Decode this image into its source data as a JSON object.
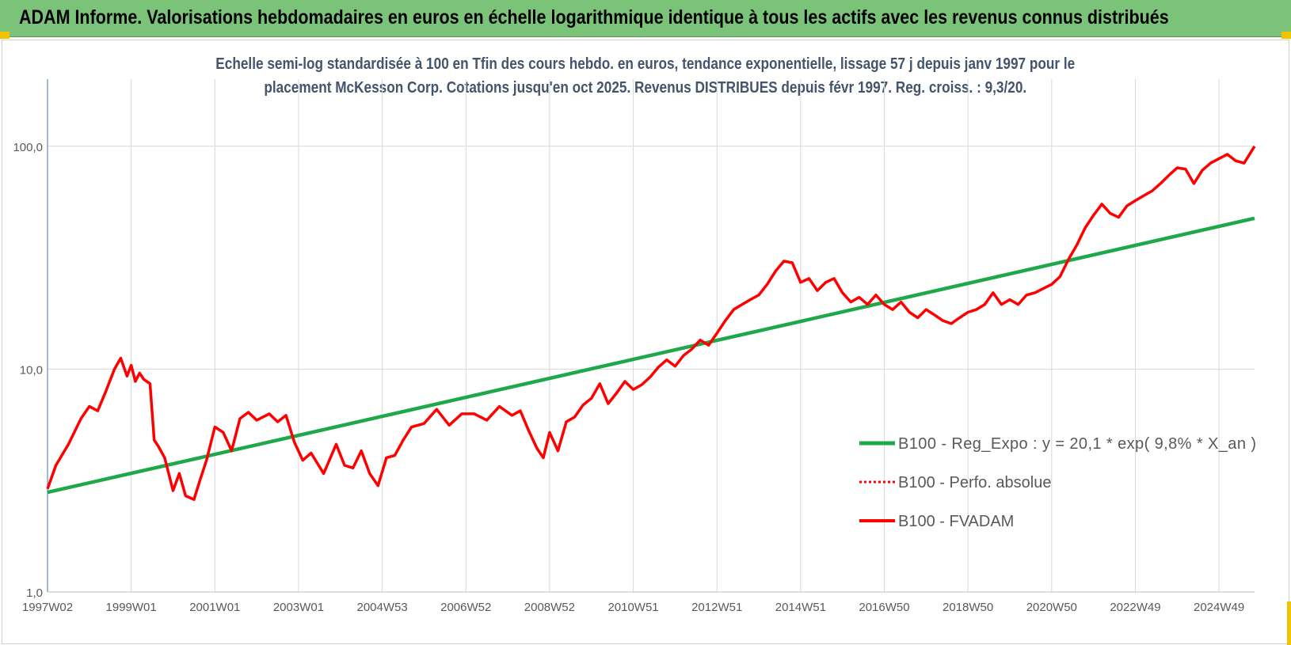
{
  "banner": {
    "title": "ADAM Informe. Valorisations hebdomadaires en euros en échelle logarithmique identique à tous les actifs avec les revenus connus distribués"
  },
  "chart_subtitle": {
    "line1": "Echelle semi-log standardisée à 100 en Tfin des cours hebdo. en euros, tendance exponentielle, lissage 57 j depuis janv 1997 pour le",
    "line2": "placement McKesson Corp. Cotations jusqu'en oct 2025.  Revenus DISTRIBUES depuis févr 1997. Reg. croiss. : 9,3/20."
  },
  "colors": {
    "banner": "#7cc37a",
    "accent_corner": "#f2c200",
    "regression": "#1fa84a",
    "fvadam": "#ff0000",
    "perfo": "#ff0000",
    "subtitle_text": "#44546a",
    "grid": "#d9d9d9"
  },
  "chart_data": {
    "type": "line",
    "y_scale": "log",
    "ylim": [
      1,
      200
    ],
    "y_ticks": [
      1,
      10,
      100
    ],
    "y_tick_labels": [
      "1,0",
      "10,0",
      "100,0"
    ],
    "x_tick_labels": [
      "1997W02",
      "1999W01",
      "2001W01",
      "2003W01",
      "2004W53",
      "2006W52",
      "2008W52",
      "2010W51",
      "2012W51",
      "2014W51",
      "2016W50",
      "2018W50",
      "2020W50",
      "2022W49",
      "2024W49"
    ],
    "x_tick_years": [
      1997.0,
      1999.0,
      2001.0,
      2003.0,
      2005.0,
      2007.0,
      2009.0,
      2011.0,
      2013.0,
      2015.0,
      2017.0,
      2019.0,
      2021.0,
      2023.0,
      2025.0
    ],
    "xlim": [
      1997.0,
      2025.85
    ],
    "grid": "vertical and horizontal",
    "legend_position": "right-middle",
    "series": [
      {
        "name": "B100 - Reg_Expo : y = 20,1 * exp( 9,8% *  X_an )",
        "style": "solid-thick",
        "color": "#1fa84a",
        "x": [
          1997.0,
          2025.85
        ],
        "y": [
          2.8,
          47.5
        ]
      },
      {
        "name": "B100 - Perfo. absolue",
        "style": "dotted",
        "color": "#ff0000",
        "x": [],
        "y": []
      },
      {
        "name": "B100 - FVADAM",
        "style": "solid",
        "color": "#ff0000",
        "x": [
          1997.0,
          1997.2,
          1997.5,
          1997.8,
          1998.0,
          1998.2,
          1998.4,
          1998.6,
          1998.75,
          1998.9,
          1999.0,
          1999.1,
          1999.2,
          1999.3,
          1999.45,
          1999.55,
          1999.65,
          1999.8,
          2000.0,
          2000.15,
          2000.3,
          2000.5,
          2000.65,
          2000.8,
          2001.0,
          2001.2,
          2001.4,
          2001.6,
          2001.8,
          2002.0,
          2002.3,
          2002.5,
          2002.7,
          2002.9,
          2003.1,
          2003.3,
          2003.6,
          2003.9,
          2004.1,
          2004.3,
          2004.5,
          2004.7,
          2004.9,
          2005.1,
          2005.3,
          2005.5,
          2005.7,
          2006.0,
          2006.3,
          2006.6,
          2006.9,
          2007.2,
          2007.5,
          2007.8,
          2008.1,
          2008.3,
          2008.5,
          2008.7,
          2008.85,
          2009.0,
          2009.2,
          2009.4,
          2009.6,
          2009.8,
          2010.0,
          2010.2,
          2010.4,
          2010.6,
          2010.8,
          2011.0,
          2011.2,
          2011.4,
          2011.6,
          2011.8,
          2012.0,
          2012.2,
          2012.4,
          2012.6,
          2012.8,
          2013.0,
          2013.2,
          2013.4,
          2013.6,
          2013.8,
          2014.0,
          2014.2,
          2014.4,
          2014.6,
          2014.8,
          2015.0,
          2015.2,
          2015.4,
          2015.6,
          2015.8,
          2016.0,
          2016.2,
          2016.4,
          2016.6,
          2016.8,
          2017.0,
          2017.2,
          2017.4,
          2017.6,
          2017.8,
          2018.0,
          2018.2,
          2018.4,
          2018.6,
          2018.8,
          2019.0,
          2019.2,
          2019.4,
          2019.6,
          2019.8,
          2020.0,
          2020.2,
          2020.4,
          2020.6,
          2020.8,
          2021.0,
          2021.2,
          2021.4,
          2021.6,
          2021.8,
          2022.0,
          2022.2,
          2022.4,
          2022.6,
          2022.8,
          2023.0,
          2023.2,
          2023.4,
          2023.6,
          2023.8,
          2024.0,
          2024.2,
          2024.4,
          2024.6,
          2024.8,
          2025.0,
          2025.2,
          2025.4,
          2025.6,
          2025.85
        ],
        "y": [
          2.9,
          3.7,
          4.6,
          6.0,
          6.8,
          6.5,
          8.0,
          10.0,
          11.2,
          9.3,
          10.4,
          8.8,
          9.6,
          9.0,
          8.6,
          4.8,
          4.5,
          4.0,
          2.85,
          3.4,
          2.7,
          2.6,
          3.2,
          3.9,
          5.5,
          5.2,
          4.3,
          6.0,
          6.4,
          5.9,
          6.3,
          5.8,
          6.2,
          4.7,
          3.9,
          4.2,
          3.4,
          4.6,
          3.7,
          3.6,
          4.3,
          3.4,
          3.0,
          4.0,
          4.1,
          4.8,
          5.5,
          5.7,
          6.6,
          5.6,
          6.3,
          6.3,
          5.9,
          6.8,
          6.2,
          6.5,
          5.3,
          4.4,
          4.0,
          5.2,
          4.3,
          5.8,
          6.1,
          6.9,
          7.4,
          8.6,
          7.0,
          7.8,
          8.8,
          8.1,
          8.5,
          9.2,
          10.2,
          11.0,
          10.3,
          11.5,
          12.3,
          13.5,
          12.8,
          14.5,
          16.5,
          18.5,
          19.5,
          20.5,
          21.5,
          24.0,
          27.5,
          30.5,
          30.0,
          24.5,
          25.5,
          22.5,
          24.5,
          25.5,
          22.0,
          20.0,
          21.0,
          19.5,
          21.5,
          19.5,
          18.5,
          20.0,
          18.0,
          17.0,
          18.5,
          17.5,
          16.5,
          16.0,
          17.0,
          18.0,
          18.5,
          19.5,
          22.0,
          19.5,
          20.5,
          19.5,
          21.5,
          22.0,
          23.0,
          24.0,
          26.0,
          31.0,
          36.0,
          43.0,
          49.0,
          55.0,
          50.0,
          48.0,
          54.0,
          57.0,
          60.0,
          63.0,
          68.0,
          74.0,
          80.0,
          79.0,
          68.0,
          78.0,
          84.0,
          88.0,
          92.0,
          86.0,
          84.0,
          100.0
        ]
      }
    ]
  }
}
